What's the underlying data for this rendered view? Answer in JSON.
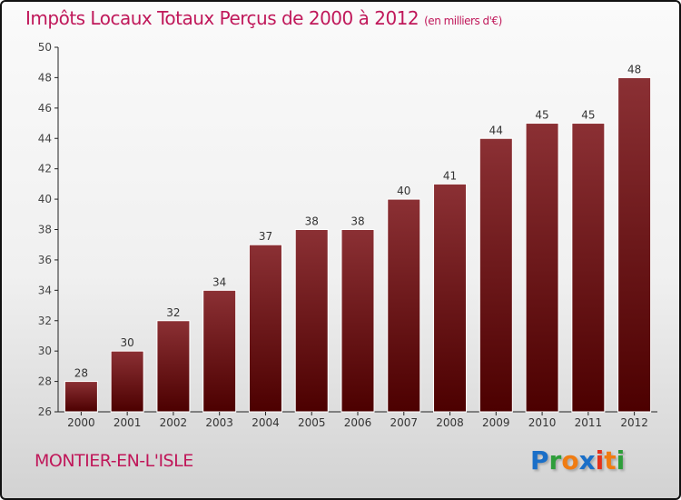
{
  "title": "Impôts Locaux Totaux Perçus de 2000 à 2012",
  "unit": "(en milliers d'€)",
  "city": "MONTIER-EN-L'ISLE",
  "logo": {
    "letters": [
      "P",
      "r",
      "o",
      "x",
      "i",
      "t",
      "i"
    ],
    "colors": [
      "#1a6fc8",
      "#2e9e3a",
      "#f07c12",
      "#1a6fc8",
      "#e5311c",
      "#f07c12",
      "#2e9e3a"
    ]
  },
  "colors": {
    "bar_top": "#8b3034",
    "bar_bottom": "#4c0000"
  },
  "chart_data": {
    "type": "bar",
    "title": "Impôts Locaux Totaux Perçus de 2000 à 2012",
    "xlabel": "",
    "ylabel": "",
    "categories": [
      "2000",
      "2001",
      "2002",
      "2003",
      "2004",
      "2005",
      "2006",
      "2007",
      "2008",
      "2009",
      "2010",
      "2011",
      "2012"
    ],
    "values": [
      28,
      30,
      32,
      34,
      37,
      38,
      38,
      40,
      41,
      44,
      45,
      45,
      48
    ],
    "ylim": [
      26,
      50
    ],
    "yticks": [
      26,
      28,
      30,
      32,
      34,
      36,
      38,
      40,
      42,
      44,
      46,
      48,
      50
    ],
    "grid": false
  }
}
